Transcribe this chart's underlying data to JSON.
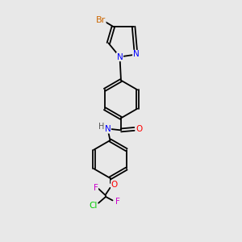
{
  "bg_color": "#e8e8e8",
  "bond_color": "#000000",
  "atom_colors": {
    "Br": "#cc6600",
    "N": "#0000ff",
    "O": "#ff0000",
    "F": "#cc00cc",
    "Cl": "#00cc00",
    "C": "#000000",
    "H": "#555555"
  },
  "font_size": 7.5
}
